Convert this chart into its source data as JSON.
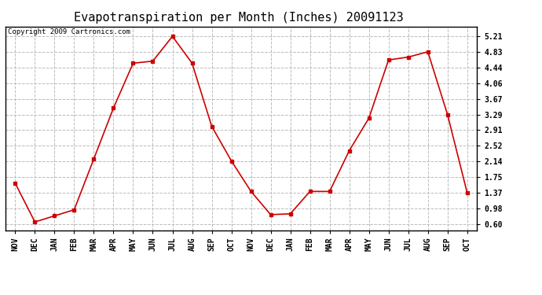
{
  "title": "Evapotranspiration per Month (Inches) 20091123",
  "copyright": "Copyright 2009 Cartronics.com",
  "months": [
    "NOV",
    "DEC",
    "JAN",
    "FEB",
    "MAR",
    "APR",
    "MAY",
    "JUN",
    "JUL",
    "AUG",
    "SEP",
    "OCT",
    "NOV",
    "DEC",
    "JAN",
    "FEB",
    "MAR",
    "APR",
    "MAY",
    "JUN",
    "JUL",
    "AUG",
    "SEP",
    "OCT"
  ],
  "values": [
    1.6,
    0.65,
    0.8,
    0.95,
    2.2,
    3.45,
    4.55,
    4.6,
    5.21,
    4.55,
    3.0,
    2.15,
    1.4,
    0.83,
    0.85,
    1.4,
    1.4,
    2.4,
    3.2,
    4.63,
    4.7,
    4.83,
    3.29,
    1.37
  ],
  "line_color": "#cc0000",
  "marker": "s",
  "marker_size": 3,
  "bg_color": "#ffffff",
  "grid_color": "#bbbbbb",
  "yticks": [
    0.6,
    0.98,
    1.37,
    1.75,
    2.14,
    2.52,
    2.91,
    3.29,
    3.67,
    4.06,
    4.44,
    4.83,
    5.21
  ],
  "ylim": [
    0.45,
    5.45
  ],
  "title_fontsize": 11,
  "axis_fontsize": 7,
  "copyright_fontsize": 6.5
}
